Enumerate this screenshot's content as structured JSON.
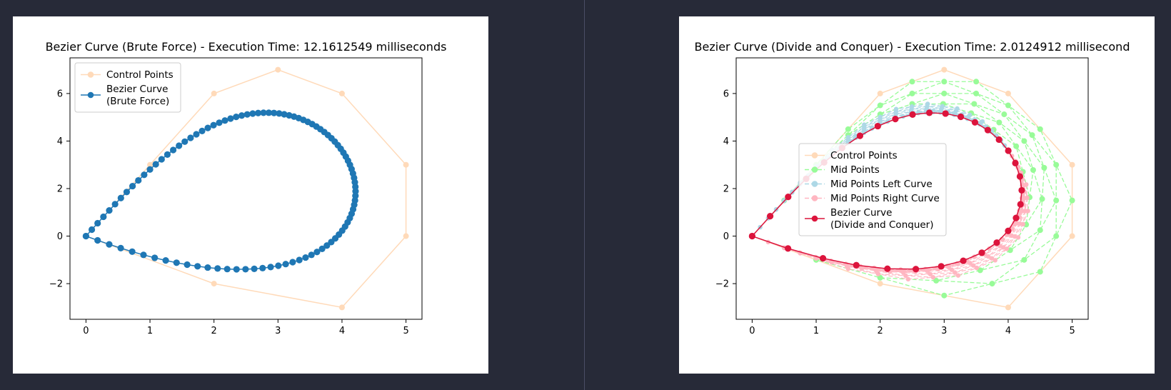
{
  "chart_data": [
    {
      "type": "line",
      "title": "Bezier Curve (Brute Force) - Execution Time: 12.1612549 milliseconds",
      "xlabel": "",
      "ylabel": "",
      "xlim": [
        -0.25,
        5.25
      ],
      "ylim": [
        -3.5,
        7.5
      ],
      "x_ticks": [
        0,
        1,
        2,
        3,
        4,
        5
      ],
      "y_ticks": [
        -2,
        0,
        2,
        4,
        6
      ],
      "y_tick_labels": [
        "−2",
        "0",
        "2",
        "4",
        "6"
      ],
      "grid": false,
      "legend_position": "top-left",
      "control_points": {
        "x": [
          0,
          1,
          2,
          3,
          4,
          5,
          5,
          4,
          2,
          0
        ],
        "y": [
          0,
          3,
          6,
          7,
          6,
          3,
          0,
          -3,
          -2,
          0
        ]
      },
      "series": [
        {
          "name": "Control Points",
          "kind": "control",
          "color": "#ffdab9"
        },
        {
          "name": "Bezier Curve\n(Brute Force)",
          "kind": "bezier",
          "color": "#1f77b4",
          "n_points": 100
        }
      ],
      "legend": [
        {
          "lines": [
            "Control Points"
          ],
          "color": "#ffdab9",
          "dashed": false
        },
        {
          "lines": [
            "Bezier Curve",
            "(Brute Force)"
          ],
          "color": "#1f77b4",
          "dashed": false
        }
      ]
    },
    {
      "type": "line",
      "title": "Bezier Curve (Divide and Conquer) - Execution Time: 2.0124912 millisecond",
      "xlabel": "",
      "ylabel": "",
      "xlim": [
        -0.25,
        5.25
      ],
      "ylim": [
        -3.5,
        7.5
      ],
      "x_ticks": [
        0,
        1,
        2,
        3,
        4,
        5
      ],
      "y_ticks": [
        -2,
        0,
        2,
        4,
        6
      ],
      "y_tick_labels": [
        "−2",
        "0",
        "2",
        "4",
        "6"
      ],
      "grid": false,
      "legend_position": "center",
      "control_points": {
        "x": [
          0,
          1,
          2,
          3,
          4,
          5,
          5,
          4,
          2,
          0
        ],
        "y": [
          0,
          3,
          6,
          7,
          6,
          3,
          0,
          -3,
          -2,
          0
        ]
      },
      "series": [
        {
          "name": "Control Points",
          "kind": "control",
          "color": "#ffdab9"
        },
        {
          "name": "Mid Points",
          "kind": "mid",
          "color": "#98fb98"
        },
        {
          "name": "Mid Points Left Curve",
          "kind": "mid-left",
          "color": "#add8e6"
        },
        {
          "name": "Mid Points Right Curve",
          "kind": "mid-right",
          "color": "#ffb6c1"
        },
        {
          "name": "Bezier Curve\n(Divide and Conquer)",
          "kind": "bezier",
          "color": "#dc143c",
          "n_points": 33
        }
      ],
      "legend": [
        {
          "lines": [
            "Control Points"
          ],
          "color": "#ffdab9",
          "dashed": false
        },
        {
          "lines": [
            "Mid Points"
          ],
          "color": "#98fb98",
          "dashed": true
        },
        {
          "lines": [
            "Mid Points Left Curve"
          ],
          "color": "#add8e6",
          "dashed": true
        },
        {
          "lines": [
            "Mid Points Right Curve"
          ],
          "color": "#ffb6c1",
          "dashed": true
        },
        {
          "lines": [
            "Bezier Curve",
            "(Divide and Conquer)"
          ],
          "color": "#dc143c",
          "dashed": false
        }
      ]
    }
  ]
}
